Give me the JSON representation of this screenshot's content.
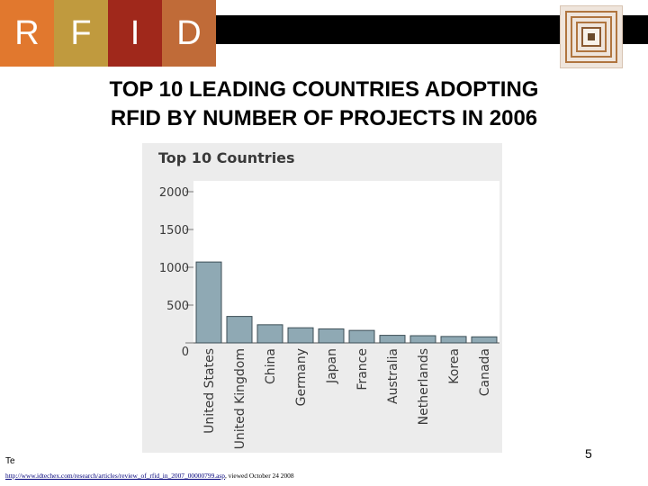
{
  "header": {
    "letters": [
      {
        "text": "R",
        "color": "#e1782e"
      },
      {
        "text": "F",
        "color": "#c09a3e"
      },
      {
        "text": "I",
        "color": "#a0281b"
      },
      {
        "text": "D",
        "color": "#c06b38"
      }
    ],
    "bar_color": "#000000",
    "logo_icon": "rfid-tag-icon"
  },
  "slide": {
    "title_line1": "TOP 10 LEADING COUNTRIES ADOPTING",
    "title_line2": "RFID BY NUMBER OF PROJECTS IN 2006",
    "page_number": "5",
    "note_prefix": "Te",
    "source_url": "http://www.idtechex.com/research/articles/review_of_rfid_in_2007_00000799.asp",
    "source_suffix": ", viewed October 24 2008"
  },
  "chart_data": {
    "type": "bar",
    "title": "Top 10 Countries",
    "categories": [
      "United States",
      "United Kingdom",
      "China",
      "Germany",
      "Japan",
      "France",
      "Australia",
      "Netherlands",
      "Korea",
      "Canada"
    ],
    "values": [
      1070,
      350,
      240,
      200,
      185,
      165,
      100,
      95,
      85,
      80
    ],
    "yticks": [
      "2000",
      "1500",
      "1000",
      "500",
      "0"
    ],
    "ylim": [
      0,
      2000
    ],
    "bar_color": "#8fa9b4",
    "bar_stroke": "#3c4e56",
    "plot_bg": "#ffffff",
    "frame_bg": "#ececec"
  }
}
